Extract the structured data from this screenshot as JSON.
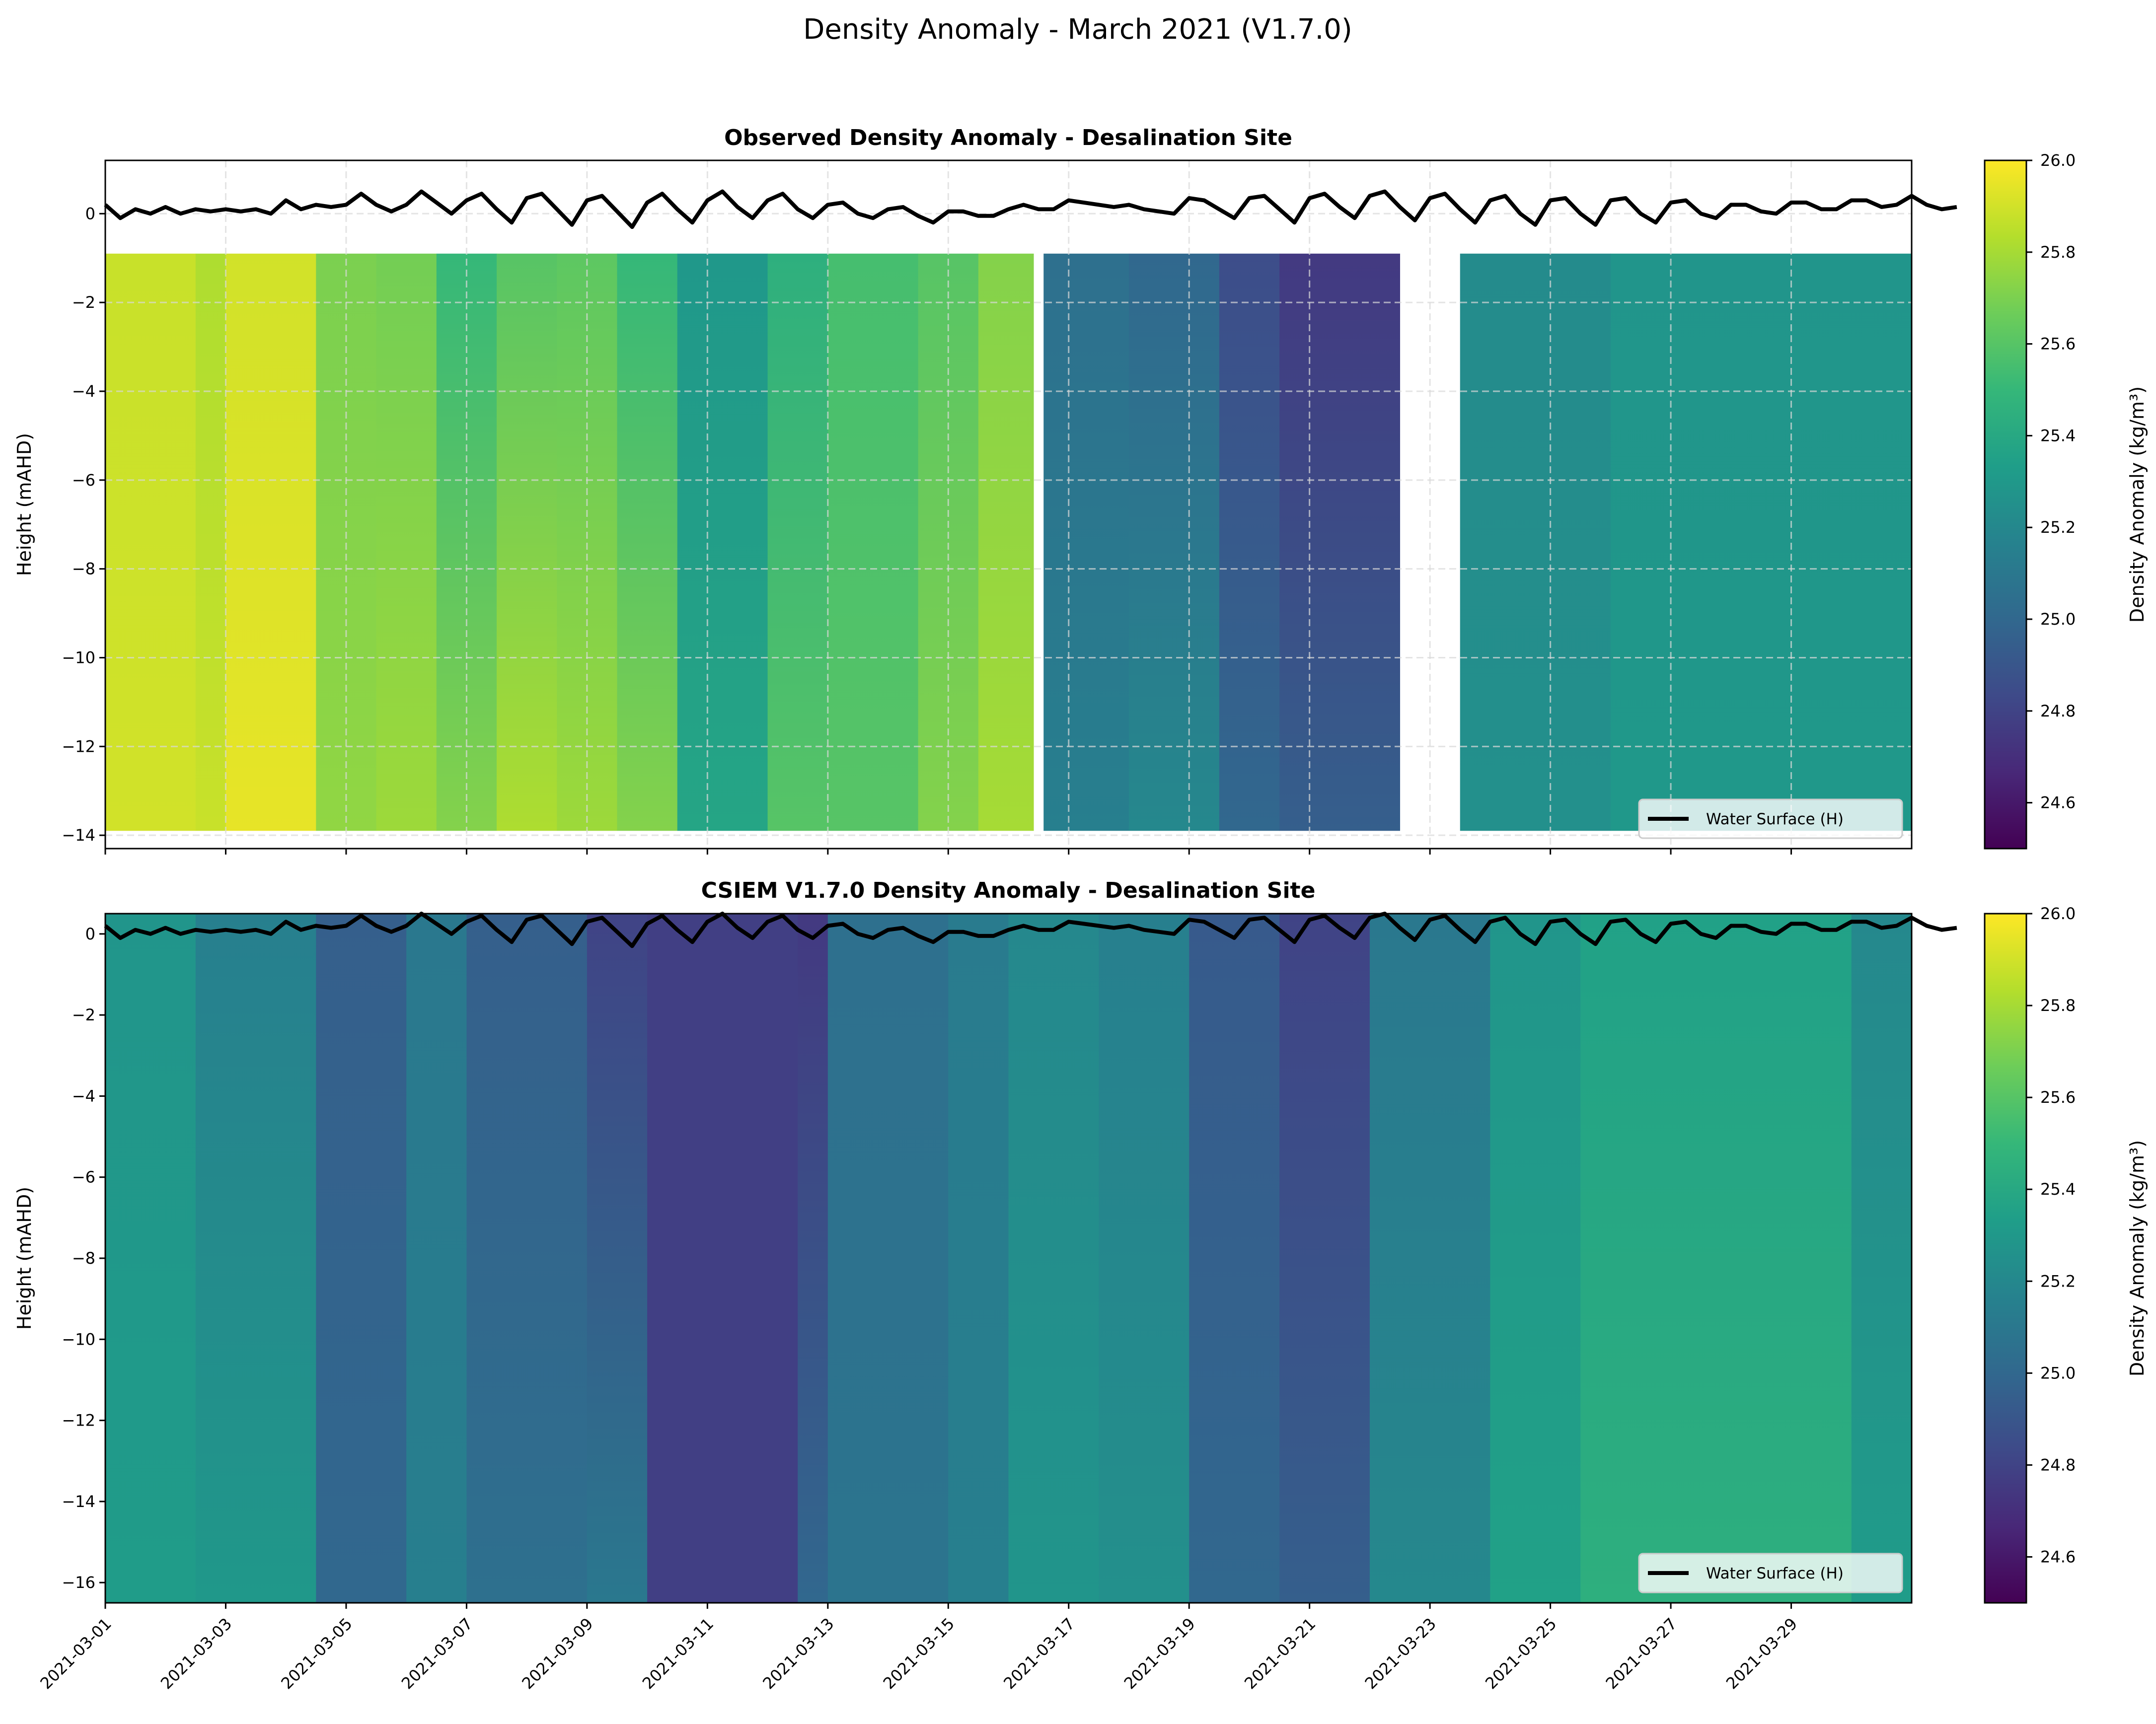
{
  "figure": {
    "suptitle": "Density Anomaly - March 2021 (V1.7.0)"
  },
  "colormap": "viridis",
  "colors": {
    "water_surface": "#000000",
    "grid": "#d9d9d9"
  },
  "chart_data": [
    {
      "type": "heatmap",
      "title": "Observed Density Anomaly - Desalination Site",
      "xlabel": "",
      "ylabel": "Height (mAHD)",
      "xlim": [
        "2021-03-01",
        "2021-03-31"
      ],
      "ylim": [
        -14.3,
        1.2
      ],
      "yticks": [
        0,
        -2,
        -4,
        -6,
        -8,
        -10,
        -12,
        -14
      ],
      "grid": true,
      "colorbar": {
        "label": "Density Anomaly (kg/m³)",
        "range": [
          24.5,
          26.0
        ],
        "ticks": [
          "26.0",
          "25.8",
          "25.6",
          "25.4",
          "25.2",
          "25.0",
          "24.8",
          "24.6"
        ]
      },
      "depth_range": [
        -0.9,
        -13.9
      ],
      "segments": [
        {
          "start": "2021-03-01T00",
          "end": "2021-03-02T12",
          "top": 25.88,
          "bottom": 25.9
        },
        {
          "start": "2021-03-02T12",
          "end": "2021-03-03T00",
          "top": 25.82,
          "bottom": 25.88
        },
        {
          "start": "2021-03-03T00",
          "end": "2021-03-04T12",
          "top": 25.9,
          "bottom": 25.95
        },
        {
          "start": "2021-03-04T12",
          "end": "2021-03-05T12",
          "top": 25.7,
          "bottom": 25.75
        },
        {
          "start": "2021-03-05T12",
          "end": "2021-03-06T12",
          "top": 25.68,
          "bottom": 25.78
        },
        {
          "start": "2021-03-06T12",
          "end": "2021-03-07T12",
          "top": 25.5,
          "bottom": 25.72
        },
        {
          "start": "2021-03-07T12",
          "end": "2021-03-08T12",
          "top": 25.6,
          "bottom": 25.82
        },
        {
          "start": "2021-03-08T12",
          "end": "2021-03-09T12",
          "top": 25.62,
          "bottom": 25.78
        },
        {
          "start": "2021-03-09T12",
          "end": "2021-03-10T12",
          "top": 25.5,
          "bottom": 25.72
        },
        {
          "start": "2021-03-10T12",
          "end": "2021-03-12T00",
          "top": 25.3,
          "bottom": 25.38
        },
        {
          "start": "2021-03-12T00",
          "end": "2021-03-13T00",
          "top": 25.45,
          "bottom": 25.6
        },
        {
          "start": "2021-03-13T00",
          "end": "2021-03-14T12",
          "top": 25.55,
          "bottom": 25.6
        },
        {
          "start": "2021-03-14T12",
          "end": "2021-03-15T12",
          "top": 25.6,
          "bottom": 25.72
        },
        {
          "start": "2021-03-15T12",
          "end": "2021-03-16T10",
          "top": 25.72,
          "bottom": 25.8
        },
        {
          "start": "2021-03-16T14",
          "end": "2021-03-18T00",
          "top": 25.05,
          "bottom": 25.15
        },
        {
          "start": "2021-03-18T00",
          "end": "2021-03-19T12",
          "top": 25.0,
          "bottom": 25.2
        },
        {
          "start": "2021-03-19T12",
          "end": "2021-03-20T12",
          "top": 24.85,
          "bottom": 25.0
        },
        {
          "start": "2021-03-20T12",
          "end": "2021-03-22T12",
          "top": 24.75,
          "bottom": 24.95
        },
        {
          "start": "2021-03-23T12",
          "end": "2021-03-26T00",
          "top": 25.22,
          "bottom": 25.25
        },
        {
          "start": "2021-03-26T00",
          "end": "2021-03-31T00",
          "top": 25.28,
          "bottom": 25.3
        }
      ],
      "legend": {
        "label": "Water Surface (H)",
        "placement": "lower-right"
      }
    },
    {
      "type": "heatmap",
      "title": "CSIEM V1.7.0 Density Anomaly - Desalination Site",
      "xlabel": "",
      "ylabel": "Height (mAHD)",
      "xlim": [
        "2021-03-01",
        "2021-03-31"
      ],
      "ylim": [
        -16.5,
        0.5
      ],
      "yticks": [
        0,
        -2,
        -4,
        -6,
        -8,
        -10,
        -12,
        -14,
        -16
      ],
      "xticks": [
        "2021-03-01",
        "2021-03-03",
        "2021-03-05",
        "2021-03-07",
        "2021-03-09",
        "2021-03-11",
        "2021-03-13",
        "2021-03-15",
        "2021-03-17",
        "2021-03-19",
        "2021-03-21",
        "2021-03-23",
        "2021-03-25",
        "2021-03-27",
        "2021-03-29"
      ],
      "grid": false,
      "colorbar": {
        "label": "Density Anomaly (kg/m³)",
        "range": [
          24.5,
          26.0
        ],
        "ticks": [
          "26.0",
          "25.8",
          "25.6",
          "25.4",
          "25.2",
          "25.0",
          "24.8",
          "24.6"
        ]
      },
      "depth_range": [
        0.5,
        -16.5
      ],
      "segments": [
        {
          "start": "2021-03-01T00",
          "end": "2021-03-02T12",
          "top": 25.28,
          "bottom": 25.32
        },
        {
          "start": "2021-03-02T12",
          "end": "2021-03-04T12",
          "top": 25.15,
          "bottom": 25.3
        },
        {
          "start": "2021-03-04T12",
          "end": "2021-03-06T00",
          "top": 24.95,
          "bottom": 25.0
        },
        {
          "start": "2021-03-06T00",
          "end": "2021-03-07T00",
          "top": 25.1,
          "bottom": 25.15
        },
        {
          "start": "2021-03-07T00",
          "end": "2021-03-09T00",
          "top": 24.95,
          "bottom": 25.05
        },
        {
          "start": "2021-03-09T00",
          "end": "2021-03-10T00",
          "top": 24.8,
          "bottom": 25.1
        },
        {
          "start": "2021-03-10T00",
          "end": "2021-03-12T12",
          "top": 24.78,
          "bottom": 24.78
        },
        {
          "start": "2021-03-12T12",
          "end": "2021-03-13T00",
          "top": 24.75,
          "bottom": 25.0
        },
        {
          "start": "2021-03-13T00",
          "end": "2021-03-15T00",
          "top": 25.05,
          "bottom": 25.08
        },
        {
          "start": "2021-03-15T00",
          "end": "2021-03-16T00",
          "top": 25.12,
          "bottom": 25.15
        },
        {
          "start": "2021-03-16T00",
          "end": "2021-03-17T12",
          "top": 25.2,
          "bottom": 25.28
        },
        {
          "start": "2021-03-17T12",
          "end": "2021-03-19T00",
          "top": 25.15,
          "bottom": 25.25
        },
        {
          "start": "2021-03-19T00",
          "end": "2021-03-20T12",
          "top": 24.92,
          "bottom": 25.0
        },
        {
          "start": "2021-03-20T12",
          "end": "2021-03-22T00",
          "top": 24.8,
          "bottom": 24.95
        },
        {
          "start": "2021-03-22T00",
          "end": "2021-03-24T00",
          "top": 25.1,
          "bottom": 25.2
        },
        {
          "start": "2021-03-24T00",
          "end": "2021-03-25T12",
          "top": 25.28,
          "bottom": 25.35
        },
        {
          "start": "2021-03-25T12",
          "end": "2021-03-30T00",
          "top": 25.35,
          "bottom": 25.45
        },
        {
          "start": "2021-03-30T00",
          "end": "2021-03-31T00",
          "top": 25.2,
          "bottom": 25.32
        }
      ],
      "legend": {
        "label": "Water Surface (H)",
        "placement": "lower-right"
      }
    }
  ],
  "water_surface": {
    "label": "Water Surface (H)",
    "start": "2021-03-01",
    "step_hours": 6,
    "values": [
      0.2,
      -0.1,
      0.1,
      0.0,
      0.15,
      0.0,
      0.1,
      0.05,
      0.1,
      0.05,
      0.1,
      0.0,
      0.3,
      0.1,
      0.2,
      0.15,
      0.2,
      0.45,
      0.2,
      0.05,
      0.2,
      0.5,
      0.25,
      0.0,
      0.3,
      0.45,
      0.1,
      -0.2,
      0.35,
      0.45,
      0.1,
      -0.25,
      0.3,
      0.4,
      0.05,
      -0.3,
      0.25,
      0.45,
      0.1,
      -0.2,
      0.3,
      0.5,
      0.15,
      -0.1,
      0.3,
      0.45,
      0.1,
      -0.1,
      0.2,
      0.25,
      0.0,
      -0.1,
      0.1,
      0.15,
      -0.05,
      -0.2,
      0.05,
      0.05,
      -0.05,
      -0.05,
      0.1,
      0.2,
      0.1,
      0.1,
      0.3,
      0.25,
      0.2,
      0.15,
      0.2,
      0.1,
      0.05,
      0.0,
      0.35,
      0.3,
      0.1,
      -0.1,
      0.35,
      0.4,
      0.1,
      -0.2,
      0.35,
      0.45,
      0.15,
      -0.1,
      0.4,
      0.5,
      0.15,
      -0.15,
      0.35,
      0.45,
      0.1,
      -0.2,
      0.3,
      0.4,
      0.0,
      -0.25,
      0.3,
      0.35,
      0.0,
      -0.25,
      0.3,
      0.35,
      0.0,
      -0.2,
      0.25,
      0.3,
      0.0,
      -0.1,
      0.2,
      0.2,
      0.05,
      0.0,
      0.25,
      0.25,
      0.1,
      0.1,
      0.3,
      0.3,
      0.15,
      0.2,
      0.4,
      0.2,
      0.1,
      0.15
    ]
  }
}
